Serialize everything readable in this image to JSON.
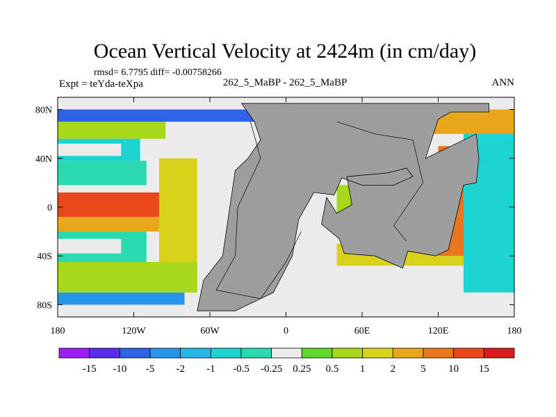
{
  "chart_data": {
    "type": "heatmap",
    "title": "Ocean Vertical Velocity at 2424m (in cm/day)",
    "stats": "rmsd= 6.7795 diff= -0.00758266",
    "experiment": "Expt = teYda-teXpa",
    "center_label": "262_5_MaBP - 262_5_MaBP",
    "season": "ANN",
    "x_ticks": [
      {
        "value": -180,
        "label": "180"
      },
      {
        "value": -120,
        "label": "120W"
      },
      {
        "value": -60,
        "label": "60W"
      },
      {
        "value": 0,
        "label": "0"
      },
      {
        "value": 60,
        "label": "60E"
      },
      {
        "value": 120,
        "label": "120E"
      },
      {
        "value": 180,
        "label": "180"
      }
    ],
    "y_ticks": [
      {
        "value": 80,
        "label": "80N"
      },
      {
        "value": 40,
        "label": "40N"
      },
      {
        "value": 0,
        "label": "0"
      },
      {
        "value": -40,
        "label": "40S"
      },
      {
        "value": -80,
        "label": "80S"
      }
    ],
    "xlim": [
      -180,
      180
    ],
    "ylim": [
      -90,
      90
    ],
    "colorbar": {
      "labels": [
        "-15",
        "-10",
        "-5",
        "-2",
        "-1",
        "-0.5",
        "-0.25",
        "0.25",
        "0.5",
        "1",
        "2",
        "5",
        "10",
        "15"
      ],
      "colors": [
        "#9b1ff0",
        "#5a2ee6",
        "#2f63e6",
        "#2596e8",
        "#27b6e6",
        "#1fd3d3",
        "#2ad9b0",
        "#ececec",
        "#5fd82a",
        "#a8d81c",
        "#d8d21c",
        "#e8a81c",
        "#e8761c",
        "#e8481c",
        "#d81c1c"
      ]
    },
    "land_color": "#9e9e9e",
    "regions": [
      {
        "name": "pacific-north-band",
        "lon": [
          -180,
          -95
        ],
        "lat": [
          56,
          70
        ],
        "value": 0.5
      },
      {
        "name": "pacific-gyre-north",
        "lon": [
          -180,
          -115
        ],
        "lat": [
          38,
          56
        ],
        "value": -1
      },
      {
        "name": "pacific-clear-north",
        "lon": [
          -180,
          -130
        ],
        "lat": [
          42,
          52
        ],
        "value": 0
      },
      {
        "name": "pacific-subtropic-north",
        "lon": [
          -180,
          -110
        ],
        "lat": [
          18,
          38
        ],
        "value": -0.5
      },
      {
        "name": "pacific-equatorial",
        "lon": [
          -180,
          -85
        ],
        "lat": [
          -8,
          12
        ],
        "value": 10
      },
      {
        "name": "pacific-eq-south",
        "lon": [
          -180,
          -90
        ],
        "lat": [
          -20,
          -8
        ],
        "value": 2
      },
      {
        "name": "pacific-subtropic-south",
        "lon": [
          -180,
          -110
        ],
        "lat": [
          -45,
          -20
        ],
        "value": -0.5
      },
      {
        "name": "pacific-clear-south",
        "lon": [
          -180,
          -130
        ],
        "lat": [
          -38,
          -26
        ],
        "value": 0
      },
      {
        "name": "southern-ocean-band",
        "lon": [
          -180,
          -70
        ],
        "lat": [
          -70,
          -45
        ],
        "value": 0.5
      },
      {
        "name": "southern-ocean-rim",
        "lon": [
          -180,
          -80
        ],
        "lat": [
          -80,
          -70
        ],
        "value": -5
      },
      {
        "name": "east-pacific-margin",
        "lon": [
          -100,
          -70
        ],
        "lat": [
          -45,
          40
        ],
        "value": 1
      },
      {
        "name": "arctic-north",
        "lon": [
          -180,
          -5
        ],
        "lat": [
          70,
          80
        ],
        "value": -10
      },
      {
        "name": "tethys-north",
        "lon": [
          40,
          150
        ],
        "lat": [
          -10,
          18
        ],
        "value": 0.5
      },
      {
        "name": "tethys-south",
        "lon": [
          40,
          150
        ],
        "lat": [
          -48,
          -30
        ],
        "value": 1
      },
      {
        "name": "east-margin",
        "lon": [
          120,
          140
        ],
        "lat": [
          -40,
          50
        ],
        "value": 5
      },
      {
        "name": "panthalassa-east",
        "lon": [
          140,
          180
        ],
        "lat": [
          -70,
          70
        ],
        "value": -1
      },
      {
        "name": "east-north-band",
        "lon": [
          95,
          180
        ],
        "lat": [
          60,
          80
        ],
        "value": 2
      }
    ]
  }
}
